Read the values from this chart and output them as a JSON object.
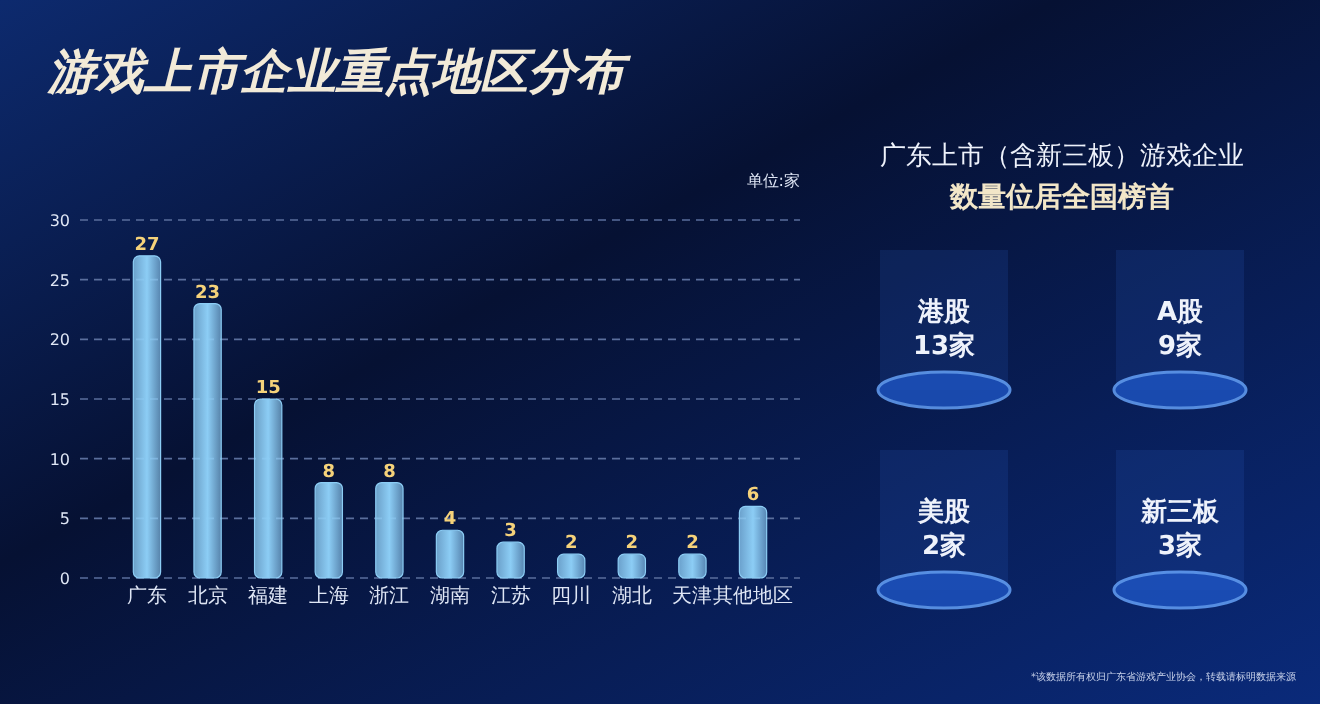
{
  "chart_data": [
    {
      "type": "bar",
      "title": "游戏上市企业重点地区分布",
      "ylabel": "单位:家",
      "categories": [
        "广东",
        "北京",
        "福建",
        "上海",
        "浙江",
        "湖南",
        "江苏",
        "四川",
        "湖北",
        "天津",
        "其他地区"
      ],
      "values": [
        27,
        23,
        15,
        8,
        8,
        4,
        3,
        2,
        2,
        2,
        6
      ],
      "color": "#8ccdf5",
      "ylim": [
        0,
        30
      ],
      "yticks": [
        0,
        5,
        10,
        15,
        20,
        25,
        30
      ],
      "grid": "y",
      "data_labels": true,
      "annotations": [
        "*该数据所有权归广东省游戏产业协会，转载请标明数据来源"
      ]
    },
    {
      "type": "other",
      "title": "广东上市（含新三板）游戏企业",
      "subtitle": "数量位居全国榜首",
      "annotations": [
        "港股",
        "13家",
        "A股",
        "9家",
        "美股",
        "2家",
        "新三板",
        "3家"
      ]
    }
  ]
}
